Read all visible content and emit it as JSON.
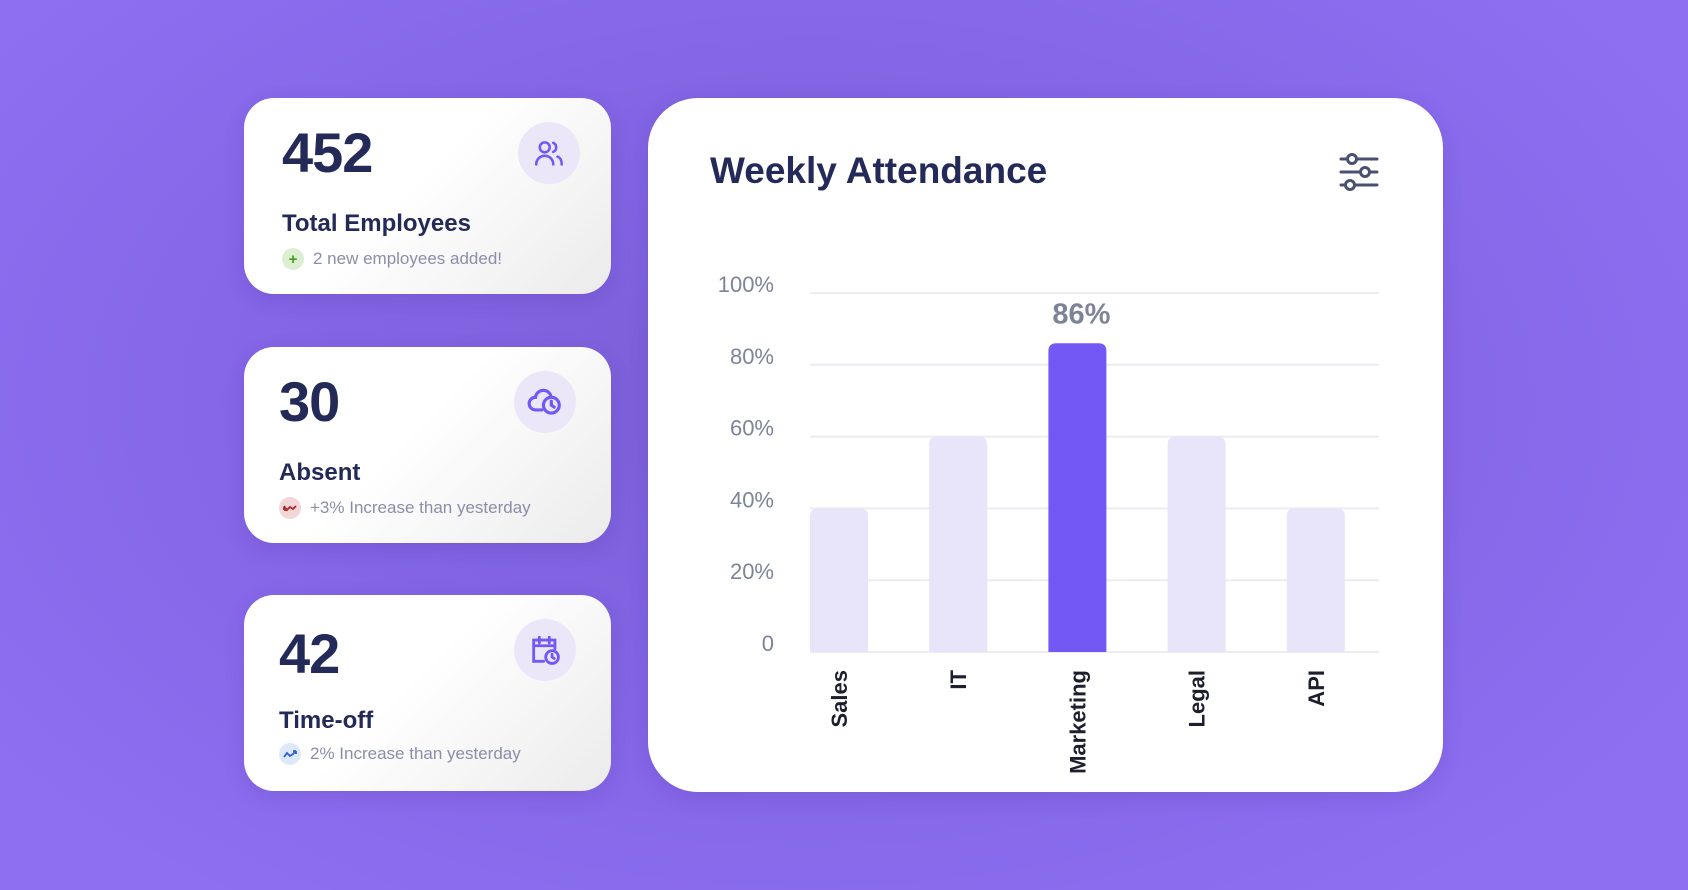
{
  "stats": [
    {
      "value": "452",
      "label": "Total Employees",
      "note": "2 new employees added!",
      "icon": "users-icon",
      "badge_icon": "plus-icon",
      "badge_color": "#4a9a1f",
      "badge_bg": "#dcefd3"
    },
    {
      "value": "30",
      "label": "Absent",
      "note": "+3% Increase than yesterday",
      "icon": "cloud-clock-icon",
      "badge_icon": "trend-down-icon",
      "badge_color": "#b0282a",
      "badge_bg": "#f3d6d8"
    },
    {
      "value": "42",
      "label": "Time-off",
      "note": "2% Increase than yesterday",
      "icon": "calendar-clock-icon",
      "badge_icon": "trend-up-icon",
      "badge_color": "#2b5fd9",
      "badge_bg": "#dfe8fb"
    }
  ],
  "colors": {
    "accent": "#7458f5",
    "bar_muted": "#e8e4fa",
    "text_dark": "#232a58"
  },
  "chart_data": {
    "type": "bar",
    "title": "Weekly Attendance",
    "categories": [
      "Sales",
      "IT",
      "Marketing",
      "Legal",
      "API"
    ],
    "values": [
      40,
      60,
      86,
      60,
      40
    ],
    "highlighted": "Marketing",
    "highlight_label": "86%",
    "ylim": [
      0,
      100
    ],
    "yticks": [
      0,
      20,
      40,
      60,
      80,
      100
    ],
    "ytick_labels": [
      "0",
      "20%",
      "40%",
      "60%",
      "80%",
      "100%"
    ],
    "grid": true,
    "xlabel": "",
    "ylabel": ""
  }
}
